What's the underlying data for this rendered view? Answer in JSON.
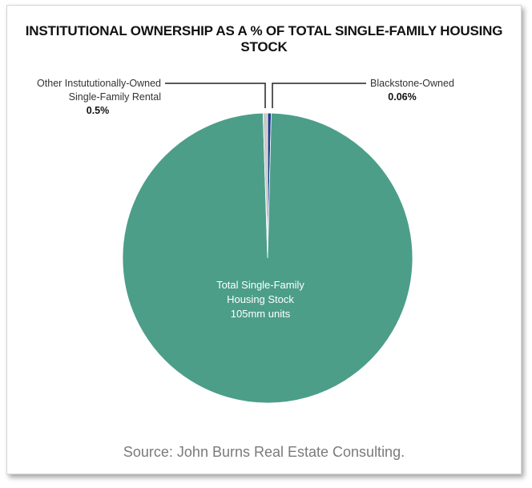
{
  "chart_data": {
    "type": "pie",
    "title": "INSTITUTIONAL OWNERSHIP AS A % OF TOTAL SINGLE-FAMILY HOUSING STOCK",
    "source": "Source: John Burns Real Estate Consulting.",
    "slices": [
      {
        "key": "total",
        "label_lines": [
          "Total Single-Family",
          "Housing Stock",
          "105mm units"
        ],
        "value": 99.44,
        "color": "#4c9e89"
      },
      {
        "key": "blackstone",
        "label_lines": [
          "Blackstone-Owned"
        ],
        "value_label": "0.06%",
        "value": 0.06,
        "color": "#1f3f8a"
      },
      {
        "key": "other",
        "label_lines": [
          "Other Instututionally-Owned",
          "Single-Family Rental"
        ],
        "value_label": "0.5%",
        "value": 0.5,
        "color": "#c9c9c9"
      }
    ]
  }
}
